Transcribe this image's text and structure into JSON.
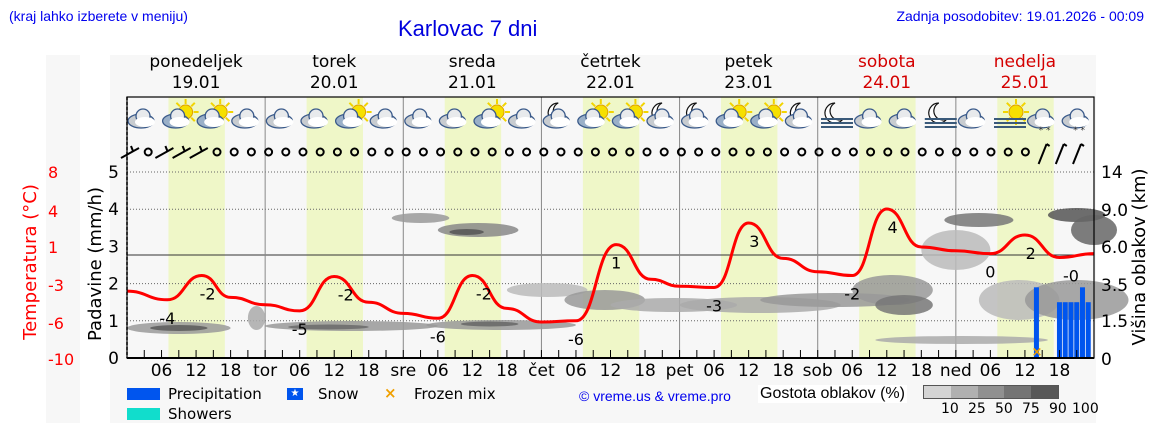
{
  "header": {
    "menu_hint": "(kraj lahko izberete v meniju)",
    "title": "Karlovac 7 dni",
    "last_update": "Zadnja posodobitev: 19.01.2026 - 00:09"
  },
  "days": [
    {
      "name": "ponedeljek",
      "date": "19.01",
      "weekend": false
    },
    {
      "name": "torek",
      "date": "20.01",
      "weekend": false
    },
    {
      "name": "sreda",
      "date": "21.01",
      "weekend": false
    },
    {
      "name": "četrtek",
      "date": "22.01",
      "weekend": false
    },
    {
      "name": "petek",
      "date": "23.01",
      "weekend": false
    },
    {
      "name": "sobota",
      "date": "24.01",
      "weekend": true
    },
    {
      "name": "nedelja",
      "date": "25.01",
      "weekend": true
    }
  ],
  "chart_data": {
    "type": "line",
    "title": "Karlovac 7 dni",
    "x_tick_labels": [
      "06",
      "12",
      "18",
      "tor",
      "06",
      "12",
      "18",
      "sre",
      "06",
      "12",
      "18",
      "čet",
      "06",
      "12",
      "18",
      "pet",
      "06",
      "12",
      "18",
      "sob",
      "06",
      "12",
      "18",
      "ned",
      "06",
      "12",
      "18"
    ],
    "left_axis_temperature": {
      "label": "Temperatura (°C)",
      "ticks": [
        "8",
        "4",
        "1",
        "-3",
        "-6",
        "-10"
      ],
      "color": "#ff0000"
    },
    "left_axis_precip": {
      "label": "Padavine (mm/h)",
      "ticks": [
        "5",
        "4",
        "3",
        "2",
        "1",
        "0"
      ],
      "range": [
        0,
        5
      ]
    },
    "right_axis_cloud_height": {
      "label": "Višina oblakov (km)",
      "ticks": [
        "14",
        "9.0",
        "6.0",
        "3.5",
        "1.5",
        "0"
      ]
    },
    "series": [
      {
        "name": "Temperatura",
        "color": "#ff0000",
        "x_hours": [
          0,
          7,
          13,
          18,
          24,
          30,
          36,
          42,
          48,
          54,
          60,
          66,
          72,
          78,
          85,
          91,
          96,
          102,
          108,
          114,
          120,
          126,
          132,
          138,
          144,
          150,
          156,
          162,
          168
        ],
        "values": [
          -3.5,
          -4.2,
          -2.0,
          -4.0,
          -4.6,
          -5.1,
          -2.1,
          -4.4,
          -5.3,
          -5.7,
          -2.0,
          -4.9,
          -6.0,
          -5.9,
          1.2,
          -2.4,
          -3.1,
          -3.2,
          3.0,
          -0.2,
          -1.6,
          -2.0,
          4.2,
          1.0,
          0.6,
          0.3,
          2.0,
          -0.1,
          0.3
        ]
      },
      {
        "name": "Precipitation",
        "color": "#0055ee",
        "notes": "Snow bars around ned 14h (~1.9 mm/h) and ned 17–24h (~1.5–1.9 mm/h)",
        "points": [
          {
            "day": "ned",
            "hour": 14,
            "mm_h": 1.9
          },
          {
            "day": "ned",
            "hour": 18,
            "mm_h": 1.5
          },
          {
            "day": "ned",
            "hour": 19,
            "mm_h": 1.5
          },
          {
            "day": "ned",
            "hour": 20,
            "mm_h": 1.5
          },
          {
            "day": "ned",
            "hour": 21,
            "mm_h": 1.5
          },
          {
            "day": "ned",
            "hour": 22,
            "mm_h": 1.9
          },
          {
            "day": "ned",
            "hour": 23,
            "mm_h": 1.5
          }
        ]
      }
    ],
    "temperature_labels": [
      {
        "text": "-4",
        "hour": 7
      },
      {
        "text": "-2",
        "hour": 14
      },
      {
        "text": "-5",
        "hour": 30
      },
      {
        "text": "-2",
        "hour": 38
      },
      {
        "text": "-6",
        "hour": 54
      },
      {
        "text": "-2",
        "hour": 62
      },
      {
        "text": "-6",
        "hour": 78
      },
      {
        "text": "1",
        "hour": 85
      },
      {
        "text": "-3",
        "hour": 102
      },
      {
        "text": "3",
        "hour": 109
      },
      {
        "text": "-2",
        "hour": 126
      },
      {
        "text": "4",
        "hour": 133
      },
      {
        "text": "0",
        "hour": 150
      },
      {
        "text": "2",
        "hour": 157
      },
      {
        "text": "-0",
        "hour": 164
      }
    ],
    "weather_icons": [
      "cloudy",
      "partly-sunny",
      "partly-sunny",
      "cloudy",
      "cloudy",
      "cloudy",
      "partly-sunny",
      "cloudy",
      "cloudy",
      "cloudy",
      "partly-sunny",
      "cloudy",
      "night-cloudy",
      "partly-sunny",
      "partly-sunny",
      "night-cloudy",
      "night-cloudy",
      "partly-sunny",
      "partly-sunny",
      "night-cloudy",
      "night-fog",
      "cloudy",
      "cloudy",
      "night-fog",
      "cloudy",
      "sun-fog",
      "cloudy-snow",
      "cloudy-snow"
    ],
    "wind_symbols": [
      "barb",
      "calm",
      "barb",
      "barb",
      "barb",
      "calm",
      "calm",
      "calm",
      "calm",
      "calm",
      "calm",
      "calm",
      "calm",
      "calm",
      "calm",
      "calm",
      "calm",
      "calm",
      "calm",
      "calm",
      "calm",
      "calm",
      "calm",
      "calm",
      "calm",
      "calm",
      "calm",
      "calm",
      "calm",
      "calm",
      "calm",
      "calm",
      "calm",
      "calm",
      "calm",
      "calm",
      "calm",
      "calm",
      "calm",
      "calm",
      "calm",
      "calm",
      "calm",
      "calm",
      "calm",
      "calm",
      "calm",
      "calm",
      "calm",
      "calm",
      "calm",
      "calm",
      "calm",
      "barb",
      "barb",
      "barb"
    ],
    "grid": true
  },
  "legend": {
    "precipitation": "Precipitation",
    "snow": "Snow",
    "frozen_mix": "Frozen mix",
    "showers": "Showers",
    "copyright": "© vreme.us & vreme.pro",
    "cloud_density_label": "Gostota oblakov (%)",
    "cloud_density_ticks": [
      "10",
      "25",
      "50",
      "75",
      "90",
      "100"
    ]
  },
  "colors": {
    "precipitation": "#0055ee",
    "showers": "#11ddcc",
    "frozen_mix": "#f0a000",
    "temperature": "#ff0000",
    "daylight": "#eff7c8",
    "links": "#0000ee",
    "weekend": "#d40000"
  }
}
